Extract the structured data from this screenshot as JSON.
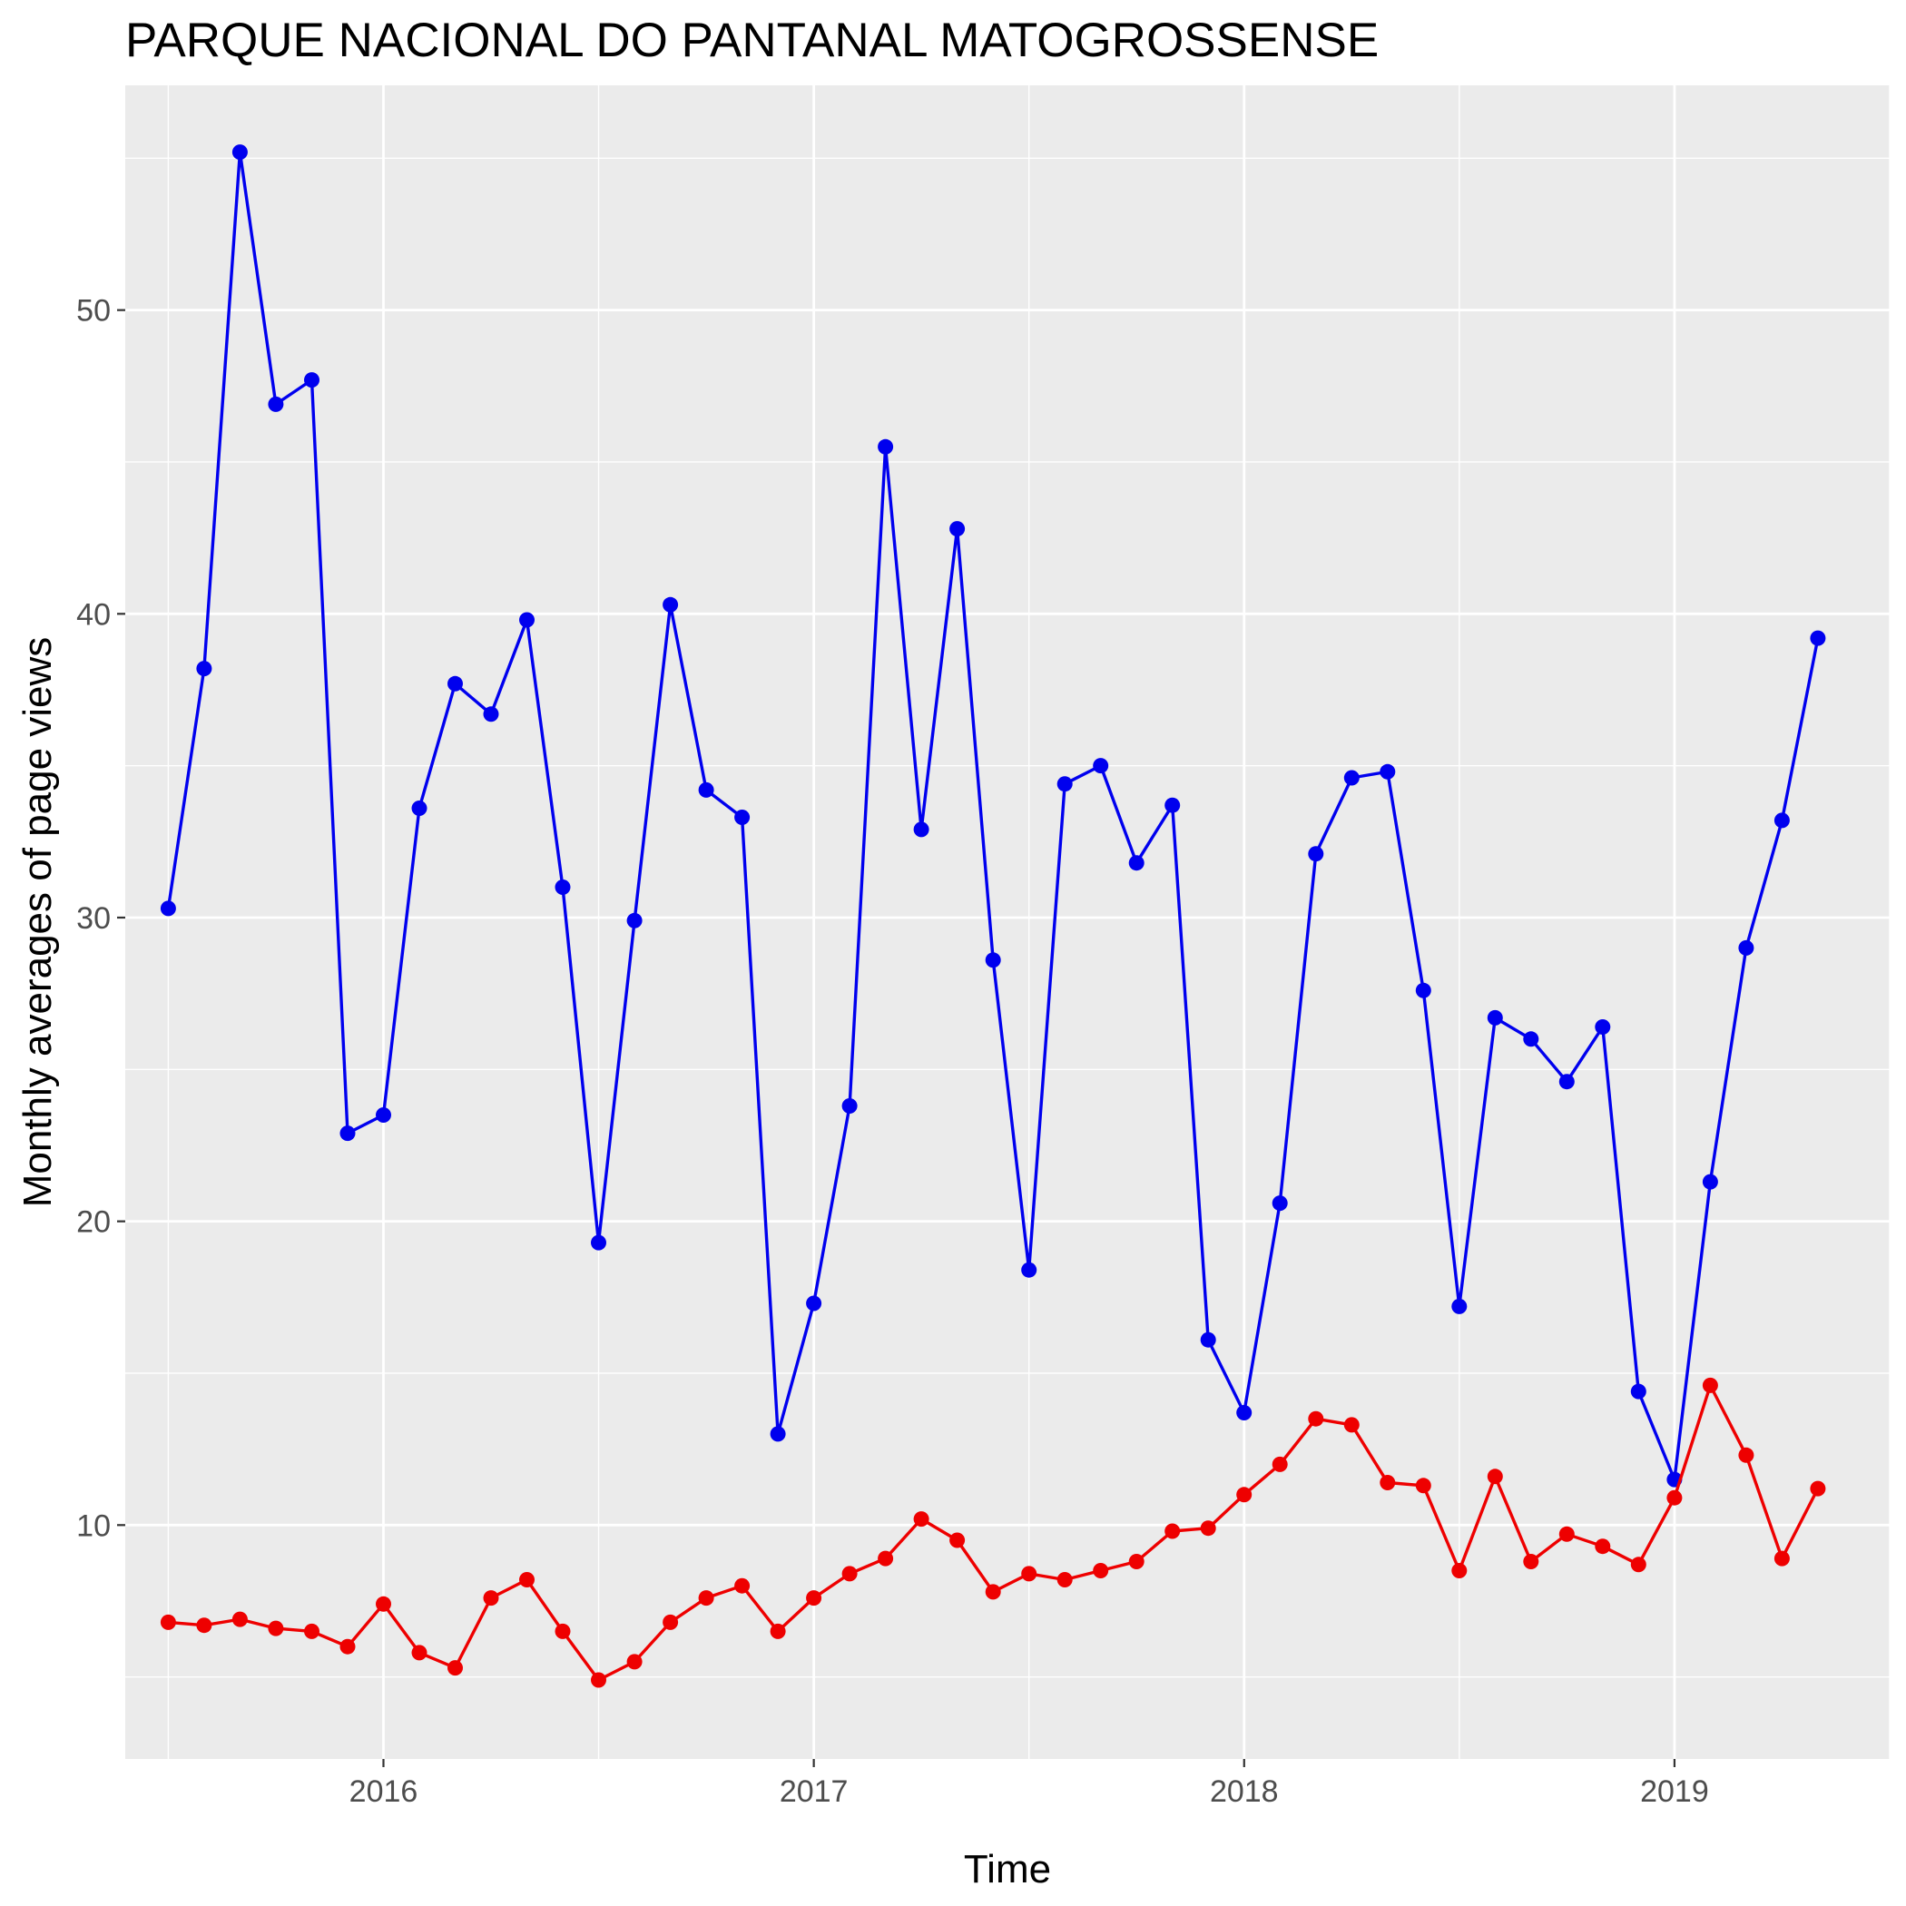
{
  "chart_data": {
    "type": "line",
    "title": "PARQUE NACIONAL DO PANTANAL MATOGROSSENSE",
    "xlabel": "Time",
    "ylabel": "Monthly averages of page views",
    "xlim": [
      2015.4,
      2019.5
    ],
    "ylim": [
      2.3,
      57.4
    ],
    "x_ticks": [
      2016,
      2017,
      2018,
      2019
    ],
    "x_tick_labels": [
      "2016",
      "2017",
      "2018",
      "2019"
    ],
    "y_ticks": [
      10,
      20,
      30,
      40,
      50
    ],
    "y_tick_labels": [
      "10",
      "20",
      "30",
      "40",
      "50"
    ],
    "grid": true,
    "panel_background": "#ebebeb",
    "grid_color": "#ffffff",
    "legend": "none",
    "x_start": 2015.5,
    "x_step": 0.08333,
    "series": [
      {
        "color": "#0000ee",
        "values": [
          30.3,
          38.2,
          55.2,
          46.9,
          47.7,
          22.9,
          23.5,
          33.6,
          37.7,
          36.7,
          39.8,
          31.0,
          19.3,
          29.9,
          40.3,
          34.2,
          33.3,
          13.0,
          17.3,
          23.8,
          45.5,
          32.9,
          42.8,
          28.6,
          18.4,
          34.4,
          35.0,
          31.8,
          33.7,
          16.1,
          13.7,
          20.6,
          32.1,
          34.6,
          34.8,
          27.6,
          17.2,
          26.7,
          26.0,
          24.6,
          26.4,
          14.4,
          11.5,
          21.3,
          29.0,
          33.2,
          39.2
        ]
      },
      {
        "color": "#ee0000",
        "values": [
          6.8,
          6.7,
          6.9,
          6.6,
          6.5,
          6.0,
          7.4,
          5.8,
          5.3,
          7.6,
          8.2,
          6.5,
          4.9,
          5.5,
          6.8,
          7.6,
          8.0,
          6.5,
          7.6,
          8.4,
          8.9,
          10.2,
          9.5,
          7.8,
          8.4,
          8.2,
          8.5,
          8.8,
          9.8,
          9.9,
          11.0,
          12.0,
          13.5,
          13.3,
          11.4,
          11.3,
          8.5,
          11.6,
          8.8,
          9.7,
          9.3,
          8.7,
          10.9,
          14.6,
          12.3,
          8.9,
          11.2
        ]
      }
    ]
  }
}
